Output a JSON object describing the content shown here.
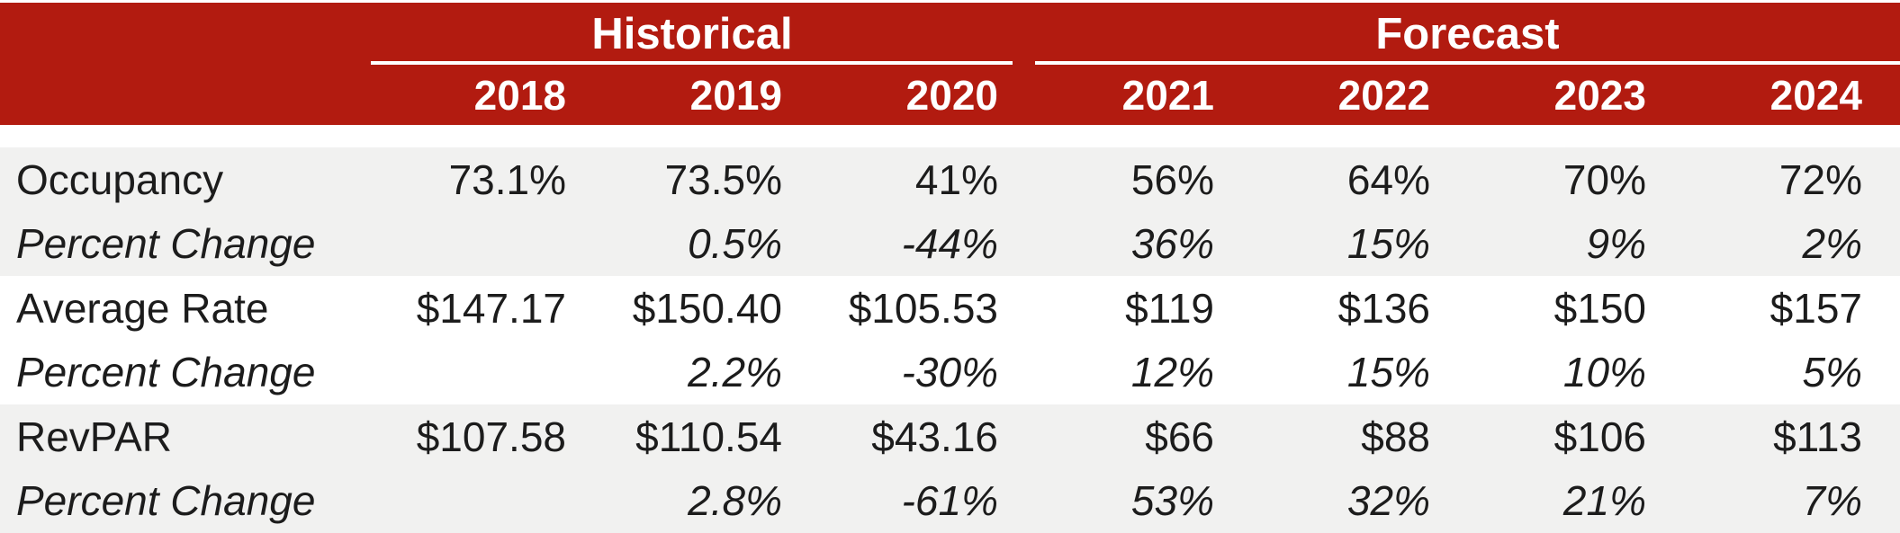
{
  "table": {
    "header": {
      "groups": [
        {
          "label": "Historical",
          "columns_spanned": 3
        },
        {
          "label": "Forecast",
          "columns_spanned": 4
        }
      ],
      "years": [
        "2018",
        "2019",
        "2020",
        "2021",
        "2022",
        "2023",
        "2024"
      ]
    },
    "rows": [
      {
        "label": "Occupancy",
        "style": "normal",
        "values": [
          "73.1%",
          "73.5%",
          "41%",
          "56%",
          "64%",
          "70%",
          "72%"
        ]
      },
      {
        "label": "Percent Change",
        "style": "italic",
        "values": [
          "",
          "0.5%",
          "-44%",
          "36%",
          "15%",
          "9%",
          "2%"
        ]
      },
      {
        "label": "Average Rate",
        "style": "normal",
        "values": [
          "$147.17",
          "$150.40",
          "$105.53",
          "$119",
          "$136",
          "$150",
          "$157"
        ]
      },
      {
        "label": "Percent Change",
        "style": "italic",
        "values": [
          "",
          "2.2%",
          "-30%",
          "12%",
          "15%",
          "10%",
          "5%"
        ]
      },
      {
        "label": "RevPAR",
        "style": "normal",
        "values": [
          "$107.58",
          "$110.54",
          "$43.16",
          "$66",
          "$88",
          "$106",
          "$113"
        ]
      },
      {
        "label": "Percent Change",
        "style": "italic",
        "values": [
          "",
          "2.8%",
          "-61%",
          "53%",
          "32%",
          "21%",
          "7%"
        ]
      }
    ],
    "colors": {
      "header_bg": "#B21B10",
      "header_text": "#FFFFFF",
      "underline": "#FFFFFF",
      "stripe_row_bg": "#F1F1F0",
      "plain_row_bg": "#FFFFFF",
      "body_text": "#1C1C1C"
    }
  },
  "chart_data": {
    "type": "table",
    "title": "",
    "column_groups": [
      {
        "label": "Historical",
        "columns": [
          "2018",
          "2019",
          "2020"
        ]
      },
      {
        "label": "Forecast",
        "columns": [
          "2021",
          "2022",
          "2023",
          "2024"
        ]
      }
    ],
    "columns": [
      "2018",
      "2019",
      "2020",
      "2021",
      "2022",
      "2023",
      "2024"
    ],
    "series": [
      {
        "name": "Occupancy (%)",
        "values": [
          73.1,
          73.5,
          41,
          56,
          64,
          70,
          72
        ]
      },
      {
        "name": "Occupancy Percent Change (%)",
        "values": [
          null,
          0.5,
          -44,
          36,
          15,
          9,
          2
        ]
      },
      {
        "name": "Average Rate ($)",
        "values": [
          147.17,
          150.4,
          105.53,
          119,
          136,
          150,
          157
        ]
      },
      {
        "name": "Average Rate Percent Change (%)",
        "values": [
          null,
          2.2,
          -30,
          12,
          15,
          10,
          5
        ]
      },
      {
        "name": "RevPAR ($)",
        "values": [
          107.58,
          110.54,
          43.16,
          66,
          88,
          106,
          113
        ]
      },
      {
        "name": "RevPAR Percent Change (%)",
        "values": [
          null,
          2.8,
          -61,
          53,
          32,
          21,
          7
        ]
      }
    ]
  }
}
